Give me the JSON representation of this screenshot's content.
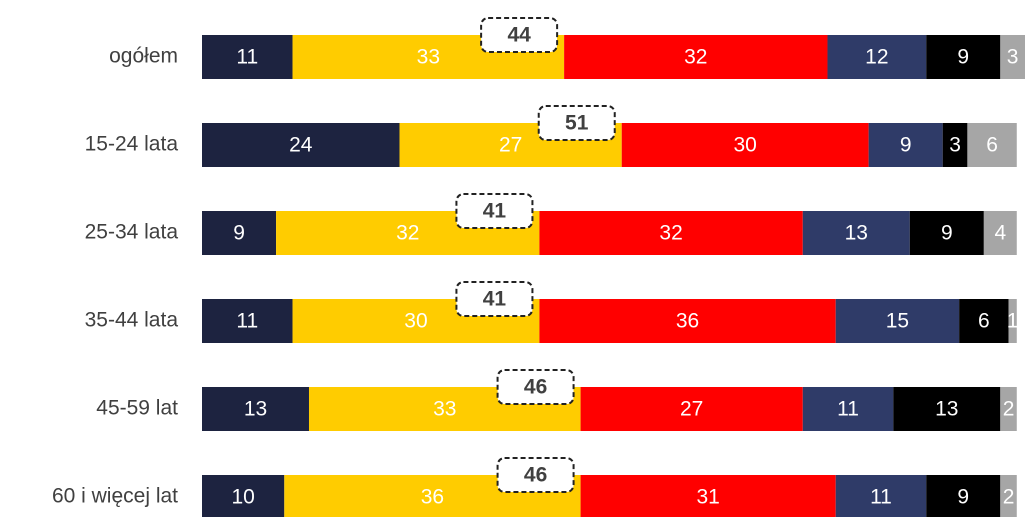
{
  "chart_data": {
    "type": "stacked-bar-horizontal",
    "categories": [
      "ogółem",
      "15-24 lata",
      "25-34 lata",
      "35-44 lata",
      "45-59 lat",
      "60 i więcej lat"
    ],
    "series": [
      {
        "color": "#1d2340",
        "values": [
          11,
          24,
          9,
          11,
          13,
          10
        ]
      },
      {
        "color": "#ffcc00",
        "values": [
          33,
          27,
          32,
          30,
          33,
          36
        ]
      },
      {
        "color": "#ff0000",
        "values": [
          32,
          30,
          32,
          36,
          27,
          31
        ]
      },
      {
        "color": "#2f3b68",
        "values": [
          12,
          9,
          13,
          15,
          11,
          11
        ]
      },
      {
        "color": "#000000",
        "values": [
          9,
          3,
          9,
          6,
          13,
          9
        ]
      },
      {
        "color": "#a6a6a6",
        "values": [
          3,
          6,
          4,
          1,
          2,
          2
        ]
      }
    ],
    "annotations": [
      44,
      51,
      41,
      41,
      46,
      46
    ],
    "xlim": [
      0,
      100
    ]
  }
}
